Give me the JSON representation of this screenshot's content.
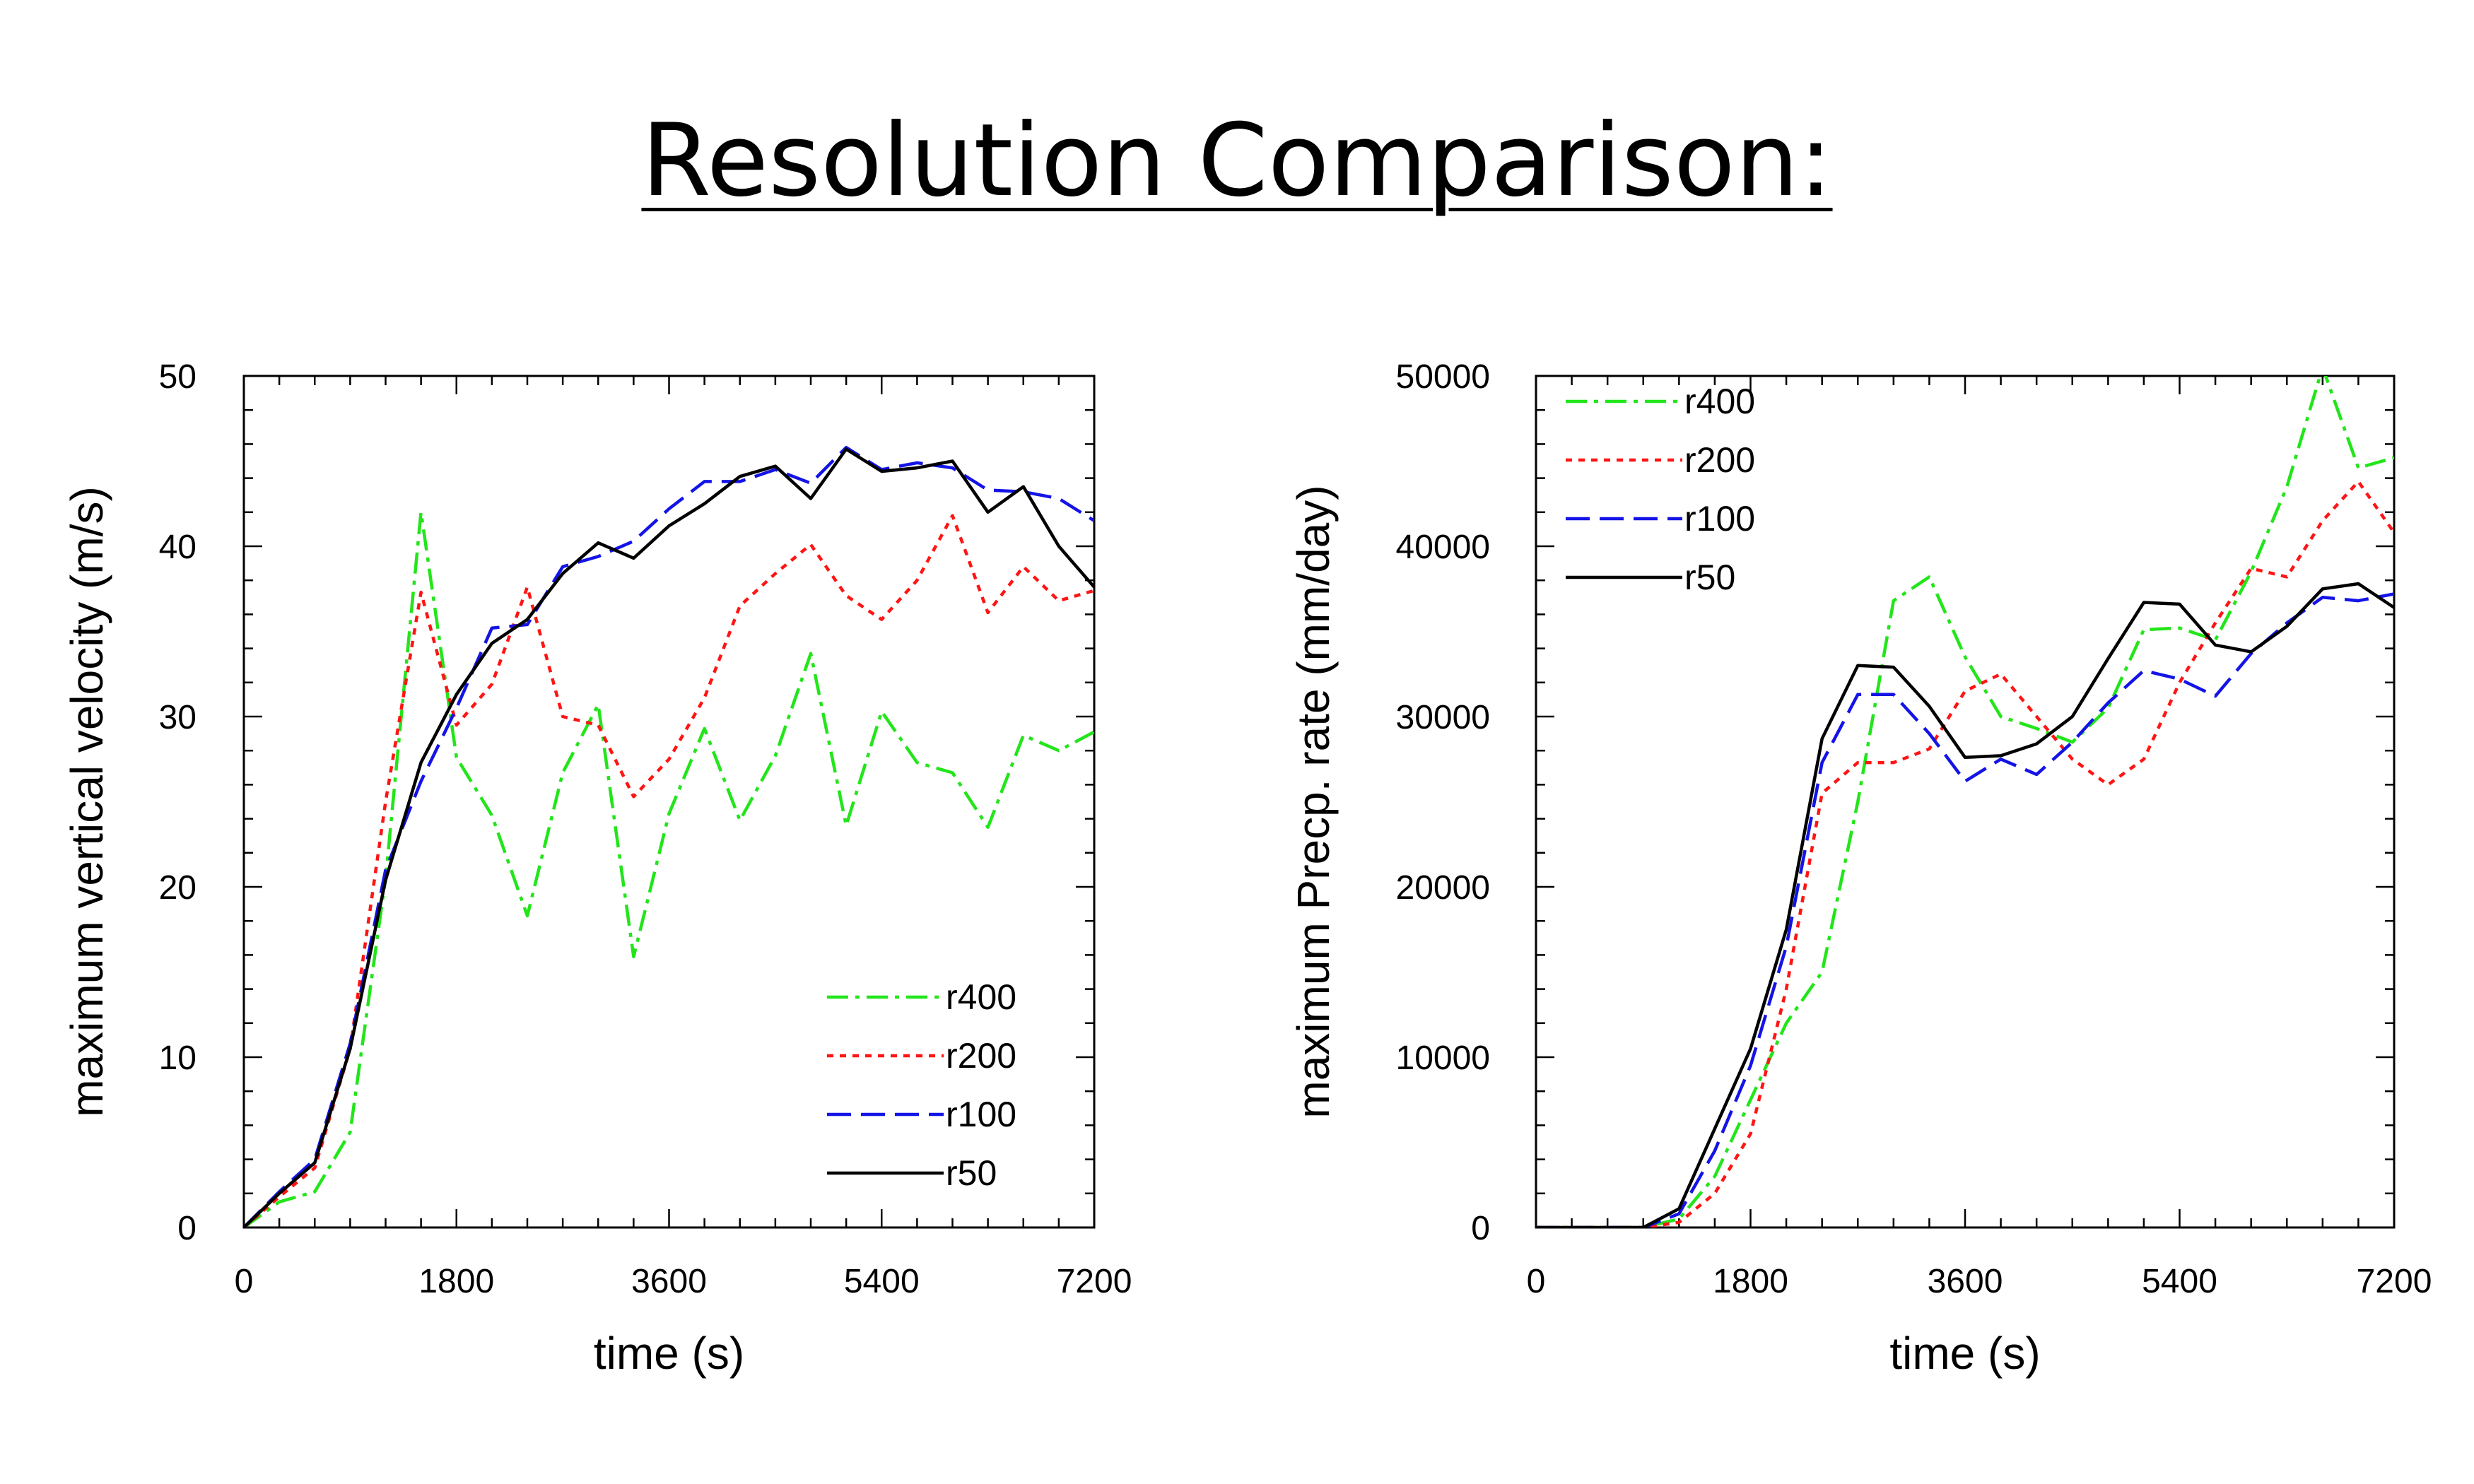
{
  "slide": {
    "title": "Resolution Comparison:"
  },
  "colors": {
    "r400": "#22e51a",
    "r200": "#ff1414",
    "r100": "#1414e6",
    "r50": "#000000"
  },
  "chart_data": [
    {
      "type": "line",
      "title": "",
      "xlabel": "time (s)",
      "ylabel": "maximum vertical velocity (m/s)",
      "xlim": [
        0,
        7200
      ],
      "ylim": [
        0,
        50
      ],
      "xticks": [
        0,
        1800,
        3600,
        5400,
        7200
      ],
      "yticks": [
        0,
        10,
        20,
        30,
        40,
        50
      ],
      "legend_position": "bottom-right",
      "x": [
        0,
        300,
        600,
        900,
        1200,
        1500,
        1800,
        2100,
        2400,
        2700,
        3000,
        3300,
        3600,
        3900,
        4200,
        4500,
        4800,
        5100,
        5400,
        5700,
        6000,
        6300,
        6600,
        6900,
        7200
      ],
      "series": [
        {
          "name": "r400",
          "style": "dash-dot",
          "color": "#22e51a",
          "values": [
            0,
            1.5,
            2.1,
            5.6,
            20.5,
            42.0,
            27.6,
            24.2,
            18.3,
            26.7,
            30.7,
            15.9,
            24.3,
            29.3,
            23.9,
            27.7,
            33.7,
            23.6,
            30.3,
            27.3,
            26.7,
            23.5,
            28.9,
            28.0,
            29.1
          ]
        },
        {
          "name": "r200",
          "style": "dotted",
          "color": "#ff1414",
          "values": [
            0,
            1.8,
            3.5,
            10.5,
            25.0,
            37.3,
            29.5,
            31.9,
            37.6,
            30.0,
            29.5,
            25.3,
            27.5,
            31.1,
            36.5,
            38.4,
            40.1,
            37.1,
            35.7,
            38.0,
            41.8,
            36.1,
            38.8,
            36.8,
            37.4
          ]
        },
        {
          "name": "r100",
          "style": "dashed",
          "color": "#1414e6",
          "values": [
            0,
            2.1,
            4.0,
            10.8,
            21.0,
            26.2,
            30.5,
            35.2,
            35.4,
            38.8,
            39.4,
            40.3,
            42.2,
            43.8,
            43.8,
            44.5,
            43.7,
            45.8,
            44.5,
            44.9,
            44.6,
            43.3,
            43.2,
            42.8,
            41.5
          ]
        },
        {
          "name": "r50",
          "style": "solid",
          "color": "#000000",
          "values": [
            0,
            2.0,
            3.8,
            10.5,
            20.4,
            27.3,
            31.3,
            34.3,
            35.7,
            38.4,
            40.2,
            39.3,
            41.2,
            42.5,
            44.1,
            44.7,
            42.8,
            45.7,
            44.4,
            44.6,
            45.0,
            42.0,
            43.5,
            40.0,
            37.6
          ]
        }
      ]
    },
    {
      "type": "line",
      "title": "",
      "xlabel": "time (s)",
      "ylabel": "maximum Precp. rate (mm/day)",
      "xlim": [
        0,
        7200
      ],
      "ylim": [
        0,
        50000
      ],
      "xticks": [
        0,
        1800,
        3600,
        5400,
        7200
      ],
      "yticks": [
        0,
        10000,
        20000,
        30000,
        40000,
        50000
      ],
      "legend_position": "top-left",
      "x": [
        0,
        300,
        600,
        900,
        1200,
        1500,
        1800,
        2100,
        2400,
        2700,
        3000,
        3300,
        3600,
        3900,
        4200,
        4500,
        4800,
        5100,
        5400,
        5700,
        6000,
        6300,
        6600,
        6900,
        7200
      ],
      "series": [
        {
          "name": "r400",
          "style": "dash-dot",
          "color": "#22e51a",
          "values": [
            0,
            0,
            0,
            0,
            500,
            3000,
            7500,
            12000,
            15000,
            25000,
            36800,
            38200,
            33500,
            30000,
            29300,
            28500,
            30500,
            35100,
            35200,
            34500,
            38500,
            43500,
            50500,
            44600,
            45200
          ]
        },
        {
          "name": "r200",
          "style": "dotted",
          "color": "#ff1414",
          "values": [
            0,
            0,
            0,
            0,
            300,
            2000,
            5500,
            14000,
            25500,
            27300,
            27300,
            28100,
            31500,
            32500,
            30000,
            27500,
            26000,
            27500,
            32000,
            35500,
            38700,
            38200,
            41500,
            43800,
            40800
          ]
        },
        {
          "name": "r100",
          "style": "dashed",
          "color": "#1414e6",
          "values": [
            0,
            0,
            0,
            0,
            800,
            4500,
            9500,
            16500,
            27300,
            31300,
            31300,
            29000,
            26200,
            27500,
            26600,
            28500,
            30800,
            32700,
            32200,
            31200,
            33700,
            35500,
            37000,
            36800,
            37200
          ]
        },
        {
          "name": "r50",
          "style": "solid",
          "color": "#000000",
          "values": [
            0,
            0,
            0,
            0,
            1100,
            5800,
            10500,
            17500,
            28700,
            33000,
            32900,
            30600,
            27600,
            27700,
            28400,
            30000,
            33400,
            36700,
            36600,
            34200,
            33800,
            35300,
            37500,
            37800,
            36400
          ]
        }
      ]
    }
  ]
}
